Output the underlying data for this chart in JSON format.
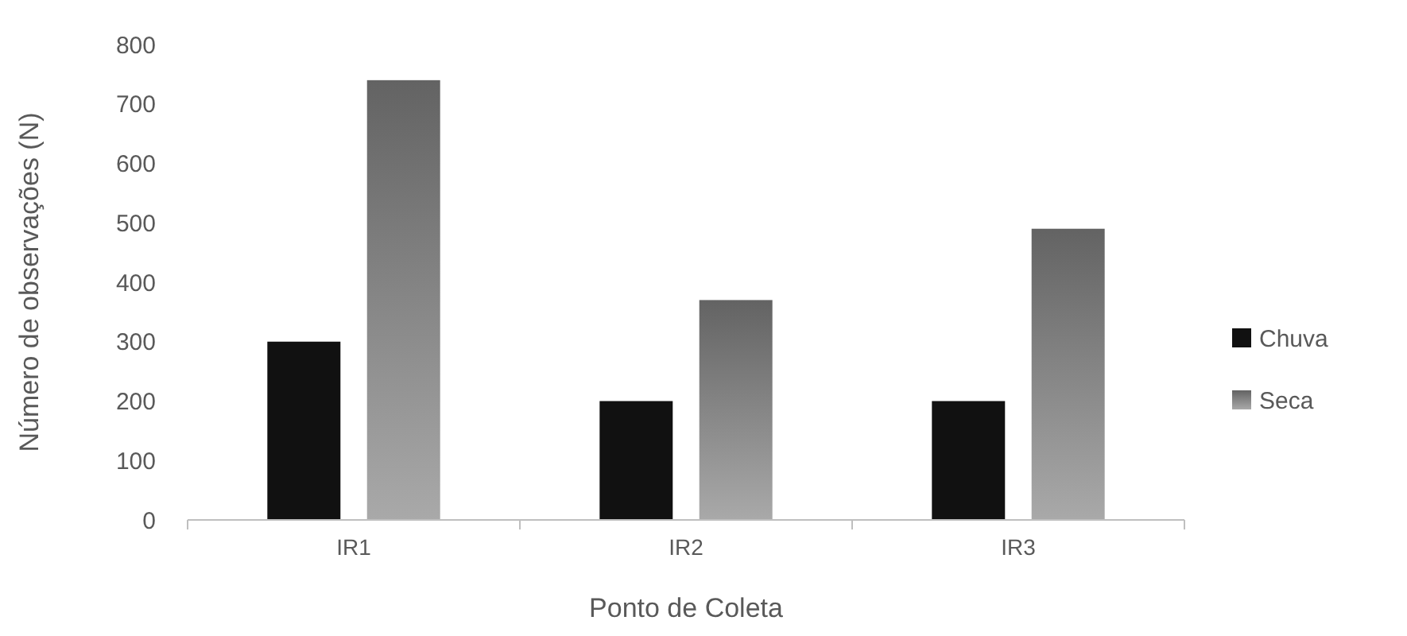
{
  "chart_data": {
    "type": "bar",
    "xlabel": "Ponto de Coleta",
    "ylabel": "Número de observações (N)",
    "categories": [
      "IR1",
      "IR2",
      "IR3"
    ],
    "series": [
      {
        "name": "Chuva",
        "color": "#111111",
        "values": [
          300,
          200,
          200
        ]
      },
      {
        "name": "Seca",
        "color": "#7f7f7f",
        "values": [
          740,
          370,
          490
        ]
      }
    ],
    "ylim": [
      0,
      800
    ],
    "yticks": [
      0,
      100,
      200,
      300,
      400,
      500,
      600,
      700,
      800
    ],
    "grid": false,
    "legend": "right"
  }
}
